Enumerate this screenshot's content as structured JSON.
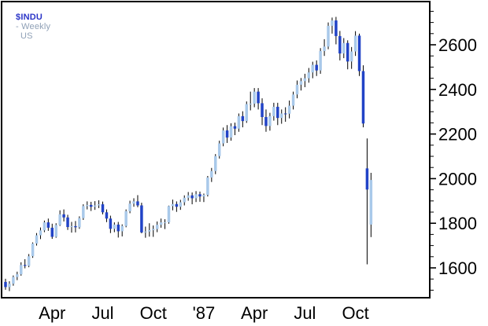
{
  "header": {
    "symbol": "$INDU",
    "mid": "- Weekly",
    "region": "US"
  },
  "chart_data": {
    "type": "candlestick",
    "title": "$INDU - Weekly US",
    "symbol": "$INDU",
    "timeframe": "Weekly",
    "legend_position": "top-left",
    "grid": false,
    "y_axis": {
      "side": "right",
      "ticks": [
        1600,
        1800,
        2000,
        2200,
        2400,
        2600
      ],
      "tick_labels": [
        "1600",
        "1800",
        "2000",
        "2200",
        "2400",
        "2600"
      ],
      "minor_step": 50,
      "range": [
        1466,
        2793
      ]
    },
    "x_axis": {
      "labels": [
        {
          "label": "Apr",
          "week_index": 12
        },
        {
          "label": "Jul",
          "week_index": 25
        },
        {
          "label": "Oct",
          "week_index": 38
        },
        {
          "label": "'87",
          "week_index": 51
        },
        {
          "label": "Apr",
          "week_index": 64
        },
        {
          "label": "Jul",
          "week_index": 77
        },
        {
          "label": "Oct",
          "week_index": 90
        }
      ]
    },
    "colors": {
      "up_candle": "#a9c9ea",
      "down_candle": "#2143c7",
      "wick": "#000000",
      "frame": "#000000",
      "symbol_text": "#2b35c8",
      "axis_text": "#000000"
    },
    "candles_ohlc": [
      [
        1537,
        1551,
        1502,
        1514
      ],
      [
        1514,
        1540,
        1496,
        1529
      ],
      [
        1529,
        1566,
        1520,
        1559
      ],
      [
        1559,
        1583,
        1545,
        1571
      ],
      [
        1571,
        1625,
        1565,
        1613
      ],
      [
        1613,
        1639,
        1598,
        1609
      ],
      [
        1609,
        1662,
        1603,
        1652
      ],
      [
        1652,
        1714,
        1645,
        1709
      ],
      [
        1709,
        1756,
        1700,
        1746
      ],
      [
        1746,
        1781,
        1729,
        1768
      ],
      [
        1768,
        1812,
        1760,
        1804
      ],
      [
        1804,
        1821,
        1766,
        1780
      ],
      [
        1780,
        1798,
        1730,
        1739
      ],
      [
        1739,
        1800,
        1735,
        1792
      ],
      [
        1792,
        1858,
        1788,
        1840
      ],
      [
        1840,
        1862,
        1808,
        1826
      ],
      [
        1826,
        1838,
        1770,
        1783
      ],
      [
        1783,
        1806,
        1758,
        1787
      ],
      [
        1787,
        1810,
        1759,
        1782
      ],
      [
        1782,
        1831,
        1775,
        1823
      ],
      [
        1823,
        1885,
        1815,
        1877
      ],
      [
        1877,
        1898,
        1862,
        1882
      ],
      [
        1882,
        1896,
        1855,
        1874
      ],
      [
        1874,
        1899,
        1860,
        1880
      ],
      [
        1880,
        1903,
        1868,
        1885
      ],
      [
        1885,
        1897,
        1840,
        1849
      ],
      [
        1849,
        1862,
        1805,
        1821
      ],
      [
        1821,
        1834,
        1756,
        1775
      ],
      [
        1775,
        1804,
        1760,
        1794
      ],
      [
        1794,
        1806,
        1736,
        1764
      ],
      [
        1764,
        1795,
        1741,
        1788
      ],
      [
        1788,
        1862,
        1782,
        1854
      ],
      [
        1854,
        1901,
        1845,
        1888
      ],
      [
        1888,
        1912,
        1874,
        1898
      ],
      [
        1898,
        1926,
        1872,
        1880
      ],
      [
        1880,
        1892,
        1755,
        1759
      ],
      [
        1759,
        1785,
        1735,
        1763
      ],
      [
        1763,
        1800,
        1740,
        1769
      ],
      [
        1769,
        1790,
        1739,
        1774
      ],
      [
        1774,
        1808,
        1760,
        1793
      ],
      [
        1793,
        1821,
        1780,
        1804
      ],
      [
        1804,
        1818,
        1774,
        1804
      ],
      [
        1804,
        1879,
        1798,
        1877
      ],
      [
        1877,
        1906,
        1858,
        1886
      ],
      [
        1886,
        1898,
        1851,
        1874
      ],
      [
        1874,
        1905,
        1860,
        1894
      ],
      [
        1894,
        1925,
        1880,
        1914
      ],
      [
        1914,
        1940,
        1901,
        1925
      ],
      [
        1925,
        1938,
        1885,
        1912
      ],
      [
        1912,
        1944,
        1895,
        1930
      ],
      [
        1930,
        1942,
        1896,
        1920
      ],
      [
        1920,
        1933,
        1895,
        1927
      ],
      [
        1927,
        2012,
        1920,
        2005
      ],
      [
        2005,
        2048,
        1985,
        2034
      ],
      [
        2034,
        2110,
        2020,
        2101
      ],
      [
        2101,
        2170,
        2090,
        2158
      ],
      [
        2158,
        2229,
        2145,
        2216
      ],
      [
        2216,
        2240,
        2160,
        2184
      ],
      [
        2184,
        2248,
        2170,
        2235
      ],
      [
        2235,
        2251,
        2195,
        2224
      ],
      [
        2224,
        2292,
        2210,
        2280
      ],
      [
        2280,
        2302,
        2230,
        2258
      ],
      [
        2258,
        2346,
        2250,
        2334
      ],
      [
        2334,
        2390,
        2306,
        2336
      ],
      [
        2336,
        2406,
        2320,
        2390
      ],
      [
        2390,
        2406,
        2310,
        2338
      ],
      [
        2338,
        2360,
        2240,
        2276
      ],
      [
        2276,
        2310,
        2210,
        2236
      ],
      [
        2236,
        2295,
        2215,
        2280
      ],
      [
        2280,
        2340,
        2260,
        2322
      ],
      [
        2322,
        2340,
        2240,
        2272
      ],
      [
        2272,
        2310,
        2246,
        2292
      ],
      [
        2292,
        2320,
        2255,
        2291
      ],
      [
        2291,
        2350,
        2270,
        2327
      ],
      [
        2327,
        2390,
        2310,
        2377
      ],
      [
        2377,
        2440,
        2360,
        2421
      ],
      [
        2421,
        2451,
        2395,
        2437
      ],
      [
        2437,
        2470,
        2410,
        2450
      ],
      [
        2450,
        2496,
        2430,
        2476
      ],
      [
        2476,
        2524,
        2450,
        2510
      ],
      [
        2510,
        2530,
        2460,
        2485
      ],
      [
        2485,
        2585,
        2470,
        2572
      ],
      [
        2572,
        2625,
        2550,
        2592
      ],
      [
        2592,
        2700,
        2580,
        2685
      ],
      [
        2685,
        2722,
        2650,
        2709
      ],
      [
        2709,
        2725,
        2602,
        2639
      ],
      [
        2639,
        2662,
        2530,
        2561
      ],
      [
        2561,
        2630,
        2540,
        2608
      ],
      [
        2608,
        2620,
        2490,
        2525
      ],
      [
        2525,
        2590,
        2492,
        2570
      ],
      [
        2570,
        2661,
        2550,
        2641
      ],
      [
        2641,
        2650,
        2460,
        2482
      ],
      [
        2482,
        2508,
        2230,
        2247
      ],
      [
        2046,
        2180,
        1616,
        1951
      ],
      [
        1794,
        2026,
        1738,
        1994
      ]
    ]
  }
}
